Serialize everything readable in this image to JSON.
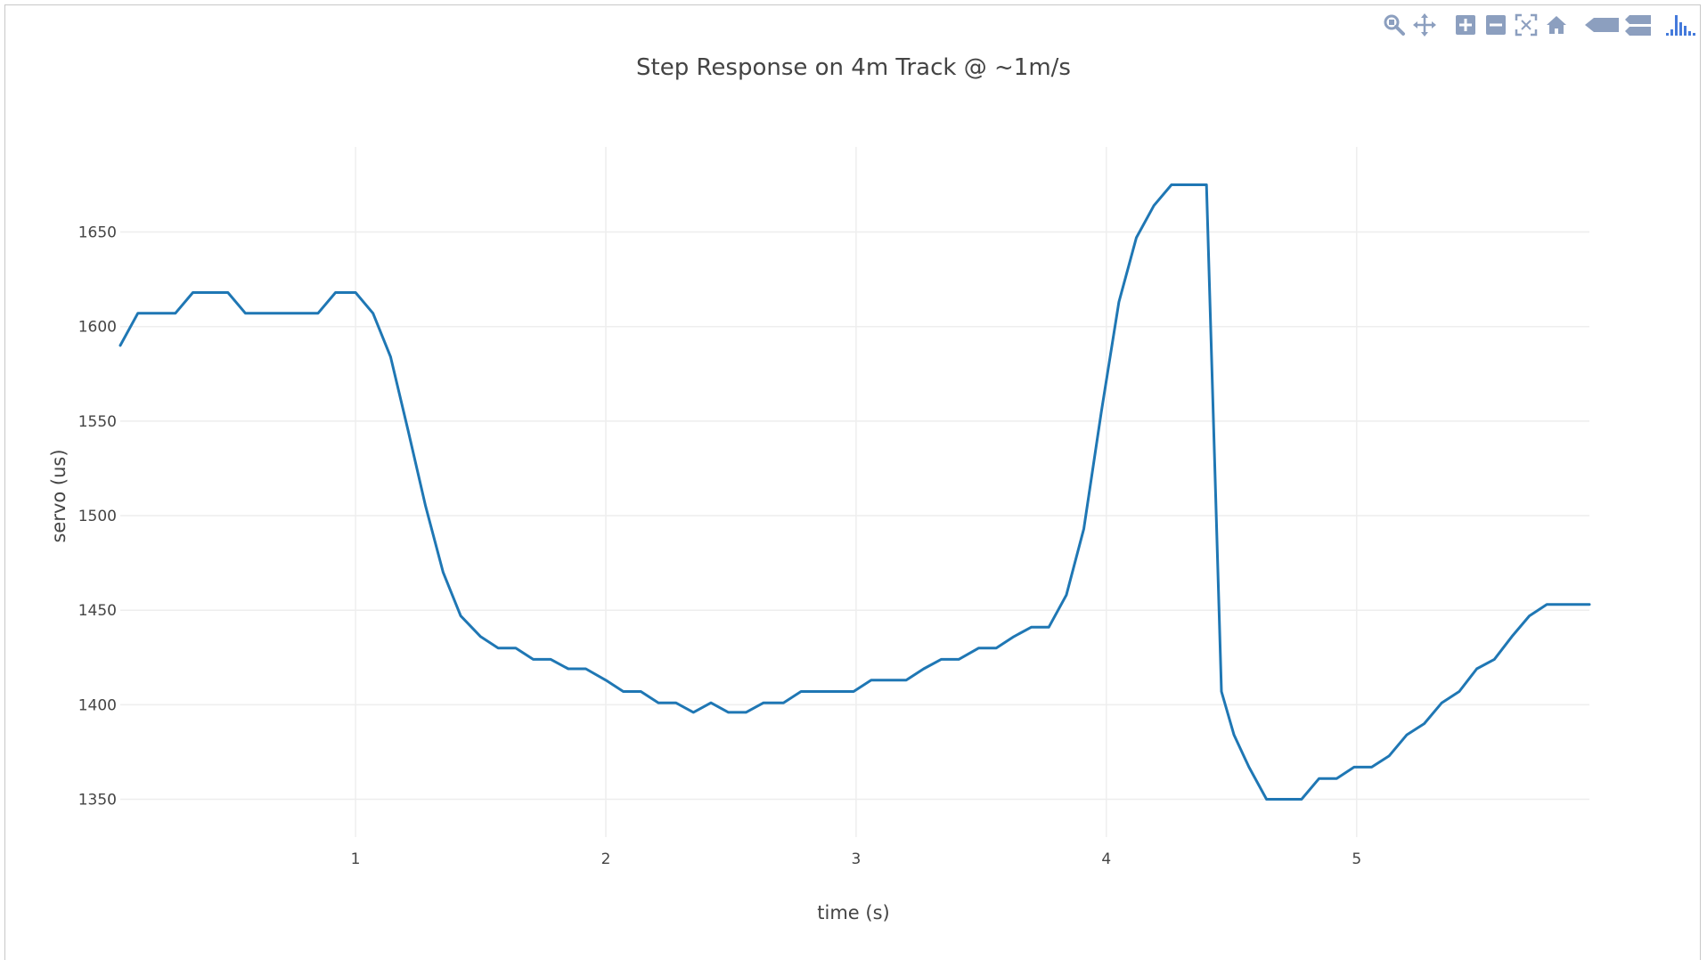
{
  "modebar": {
    "buttons": [
      {
        "name": "zoom-icon"
      },
      {
        "name": "pan-icon"
      },
      {
        "name": "zoom-in-icon"
      },
      {
        "name": "zoom-out-icon"
      },
      {
        "name": "autoscale-icon"
      },
      {
        "name": "home-icon"
      },
      {
        "name": "hover-closest-icon"
      },
      {
        "name": "hover-compare-icon"
      },
      {
        "name": "plotly-logo-icon"
      }
    ],
    "icon_color": "#8c9fbf",
    "logo_color": "#447adb"
  },
  "chart_data": {
    "type": "line",
    "title": "Step Response on 4m Track @ ~1m/s",
    "xlabel": "time (s)",
    "ylabel": "servo (us)",
    "xlim": [
      0.06,
      5.93
    ],
    "ylim": [
      1330,
      1695
    ],
    "xticks": [
      1,
      2,
      3,
      4,
      5
    ],
    "yticks": [
      1350,
      1400,
      1450,
      1500,
      1550,
      1600,
      1650
    ],
    "grid": true,
    "line_color": "#1f77b4",
    "series": [
      {
        "x": [
          0.06,
          0.13,
          0.21,
          0.28,
          0.35,
          0.42,
          0.49,
          0.56,
          0.64,
          0.71,
          0.78,
          0.85,
          0.92,
          1.0,
          1.07,
          1.14,
          1.21,
          1.28,
          1.35,
          1.42,
          1.5,
          1.57,
          1.64,
          1.71,
          1.78,
          1.85,
          1.92,
          2.0,
          2.07,
          2.14,
          2.21,
          2.28,
          2.35,
          2.42,
          2.49,
          2.56,
          2.63,
          2.71,
          2.78,
          2.85,
          2.92,
          2.99,
          3.06,
          3.13,
          3.2,
          3.27,
          3.34,
          3.41,
          3.49,
          3.56,
          3.63,
          3.7,
          3.77,
          3.84,
          3.91,
          3.98,
          4.05,
          4.12,
          4.19,
          4.26,
          4.33,
          4.4,
          4.46,
          4.51,
          4.57,
          4.64,
          4.71,
          4.78,
          4.85,
          4.92,
          4.99,
          5.06,
          5.13,
          5.2,
          5.27,
          5.34,
          5.41,
          5.48,
          5.55,
          5.62,
          5.69,
          5.76,
          5.83,
          5.9,
          5.93
        ],
        "values": [
          1590,
          1607,
          1607,
          1607,
          1618,
          1618,
          1618,
          1607,
          1607,
          1607,
          1607,
          1607,
          1618,
          1618,
          1607,
          1584,
          1545,
          1505,
          1470,
          1447,
          1436,
          1430,
          1430,
          1424,
          1424,
          1419,
          1419,
          1413,
          1407,
          1407,
          1401,
          1401,
          1396,
          1401,
          1396,
          1396,
          1401,
          1401,
          1407,
          1407,
          1407,
          1407,
          1413,
          1413,
          1413,
          1419,
          1424,
          1424,
          1430,
          1430,
          1436,
          1441,
          1441,
          1458,
          1493,
          1555,
          1613,
          1647,
          1664,
          1675,
          1675,
          1675,
          1407,
          1384,
          1367,
          1350,
          1350,
          1350,
          1361,
          1361,
          1367,
          1367,
          1373,
          1384,
          1390,
          1401,
          1407,
          1419,
          1424,
          1436,
          1447,
          1453,
          1453,
          1453,
          1453
        ]
      }
    ]
  }
}
